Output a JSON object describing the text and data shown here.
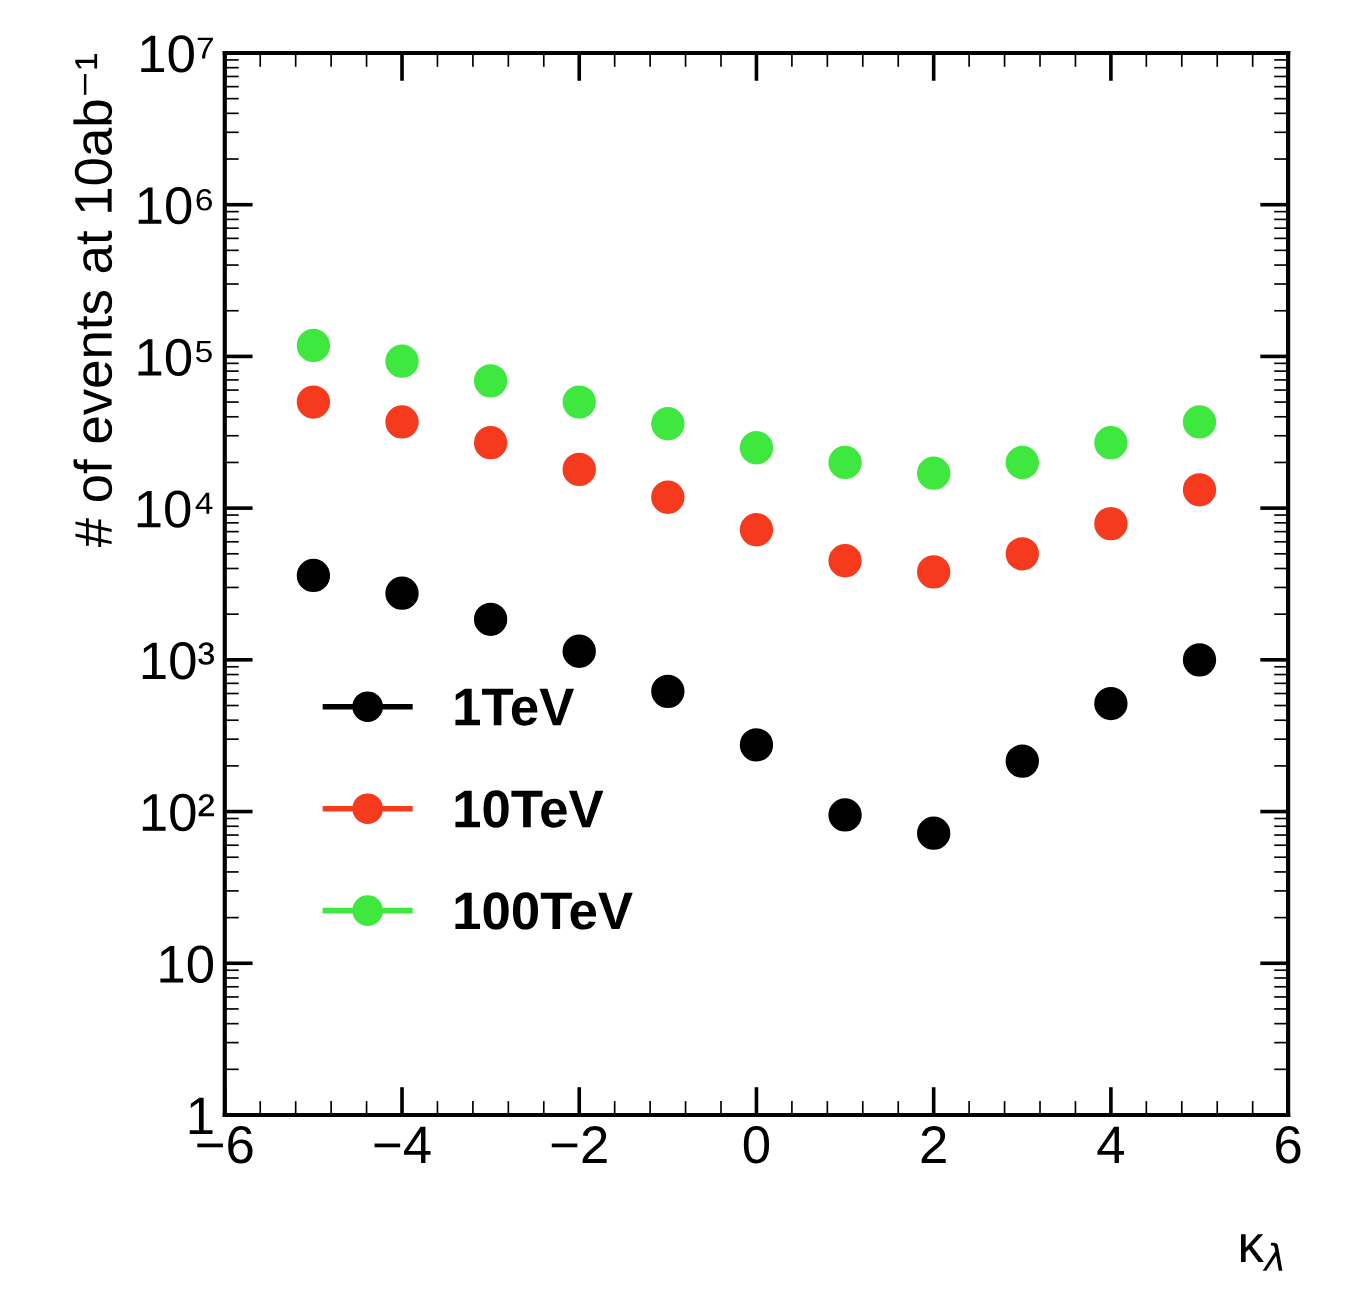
{
  "chart_data": {
    "type": "scatter",
    "xlabel": "κ$_{λ}$",
    "ylabel": "# of events at 10ab⁻¹",
    "log": "y",
    "marker": "circle",
    "grid": false,
    "legend": "bottom left",
    "x": [
      -5,
      -4,
      -3,
      -2,
      -1,
      0,
      1,
      2,
      3,
      4,
      5
    ],
    "series": [
      {
        "name": "1TeV",
        "color": "#000000",
        "values": [
          3600,
          2750,
          1850,
          1140,
          620,
          275,
          95,
          72,
          215,
          515,
          1000
        ]
      },
      {
        "name": "10TeV",
        "color": "#f53a1e",
        "values": [
          50000,
          37000,
          27000,
          18000,
          11800,
          7200,
          4500,
          3800,
          5000,
          7900,
          13200
        ]
      },
      {
        "name": "100TeV",
        "color": "#3ee83e",
        "values": [
          118000,
          93000,
          69000,
          50000,
          36000,
          25000,
          20000,
          17000,
          20000,
          27000,
          37000
        ]
      }
    ],
    "xlim": [
      -6,
      6
    ],
    "xticks": [
      {
        "value": -6,
        "label": "−6"
      },
      {
        "value": -4,
        "label": "−4"
      },
      {
        "value": -2,
        "label": "−2"
      },
      0,
      2,
      4,
      6
    ],
    "ylim": [
      1,
      10000000
    ],
    "yticks": [
      1,
      10,
      {
        "value": 100,
        "label": "10²"
      },
      {
        "value": 1000,
        "label": "10³"
      },
      {
        "value": 10000,
        "label": "10⁴"
      },
      {
        "value": 100000,
        "label": "10⁵"
      },
      {
        "value": 1000000,
        "label": "10⁶"
      },
      {
        "value": 10000000,
        "label": "10⁷"
      }
    ]
  }
}
